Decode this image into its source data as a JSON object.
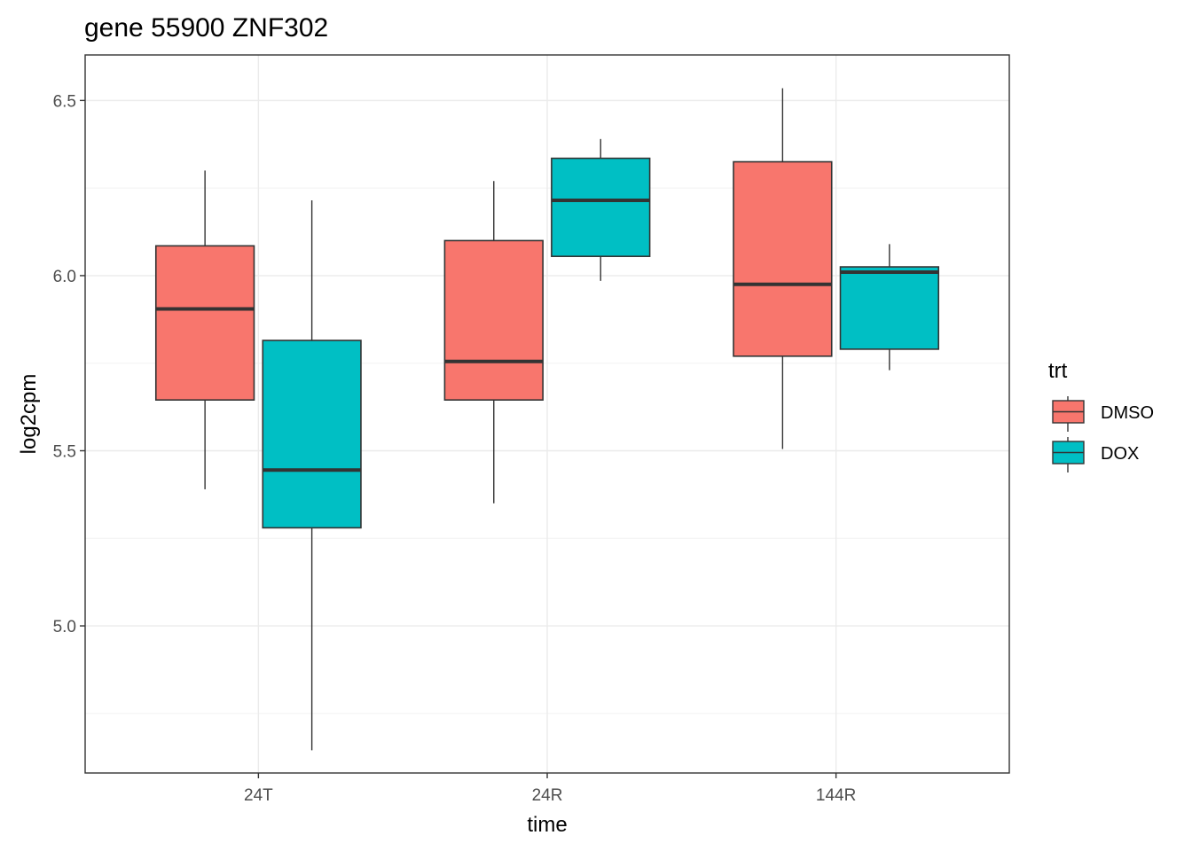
{
  "chart_data": {
    "type": "boxplot",
    "title": "gene 55900 ZNF302",
    "xlabel": "time",
    "ylabel": "log2cpm",
    "categories": [
      "24T",
      "24R",
      "144R"
    ],
    "ylim": [
      4.58,
      6.63
    ],
    "y_ticks": [
      5.0,
      5.5,
      6.0,
      6.5
    ],
    "y_tick_labels": [
      "5.0",
      "5.5",
      "6.0",
      "6.5"
    ],
    "grid": true,
    "legend": {
      "title": "trt",
      "position": "right"
    },
    "series": [
      {
        "name": "DMSO",
        "color": "#F8766D",
        "boxes": [
          {
            "min": 5.39,
            "q1": 5.645,
            "median": 5.905,
            "q3": 6.085,
            "max": 6.3
          },
          {
            "min": 5.35,
            "q1": 5.645,
            "median": 5.755,
            "q3": 6.1,
            "max": 6.27
          },
          {
            "min": 5.505,
            "q1": 5.77,
            "median": 5.975,
            "q3": 6.325,
            "max": 6.535
          }
        ]
      },
      {
        "name": "DOX",
        "color": "#00BFC4",
        "boxes": [
          {
            "min": 4.645,
            "q1": 5.28,
            "median": 5.445,
            "q3": 5.815,
            "max": 6.215
          },
          {
            "min": 5.985,
            "q1": 6.055,
            "median": 6.215,
            "q3": 6.335,
            "max": 6.39
          },
          {
            "min": 5.73,
            "q1": 5.79,
            "median": 6.01,
            "q3": 6.025,
            "max": 6.09
          }
        ]
      }
    ]
  }
}
